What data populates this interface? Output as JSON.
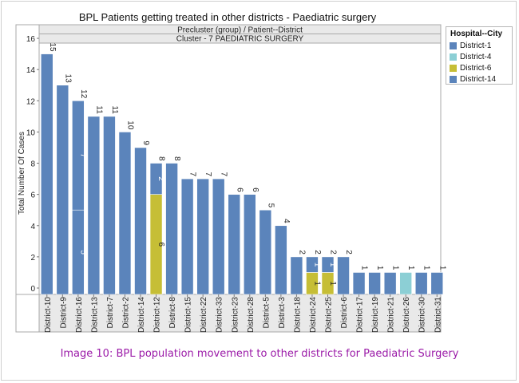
{
  "title": "BPL Patients getting treated in other districts - Paediatric surgery",
  "caption": "Image 10: BPL population movement to other districts for Paediatric Surgery",
  "legend": {
    "title": "Hospital--City",
    "items": [
      {
        "label": "District-1",
        "color": "#5b84bb"
      },
      {
        "label": "District-4",
        "color": "#8ccfd5"
      },
      {
        "label": "District-6",
        "color": "#c6be36"
      },
      {
        "label": "District-14",
        "color": "#5b84bb"
      }
    ]
  },
  "chart_data": {
    "type": "bar",
    "stacked": true,
    "title": "BPL Patients getting treated in other districts - Paediatric surgery",
    "header_line1": "Precluster (group)  /  Patient--District",
    "header_line2": "Cluster - 7 PAEDIATRIC SURGERY",
    "ylabel": "Total Number Of Cases",
    "ylim": [
      0,
      16
    ],
    "yticks": [
      0,
      2,
      4,
      6,
      8,
      10,
      12,
      14,
      16
    ],
    "grid": false,
    "legend_position": "right",
    "categories": [
      "District-10",
      "District-9",
      "District-16",
      "District-13",
      "District-7",
      "District-2",
      "District-14",
      "District-12",
      "District-8",
      "District-15",
      "District-22",
      "District-33",
      "District-23",
      "District-28",
      "District-5",
      "District-3",
      "District-18",
      "District-24",
      "District-25",
      "District-6",
      "District-17",
      "District-19",
      "District-21",
      "District-26",
      "District-30",
      "District-31"
    ],
    "totals": [
      15,
      13,
      12,
      11,
      11,
      10,
      9,
      8,
      8,
      7,
      7,
      7,
      6,
      6,
      5,
      4,
      2,
      2,
      2,
      2,
      1,
      1,
      1,
      1,
      1,
      1
    ],
    "segments": [
      [
        {
          "series": "District-14",
          "value": 15
        }
      ],
      [
        {
          "series": "District-14",
          "value": 13
        }
      ],
      [
        {
          "series": "District-1",
          "value": 5
        },
        {
          "series": "District-14",
          "value": 7
        }
      ],
      [
        {
          "series": "District-14",
          "value": 11
        }
      ],
      [
        {
          "series": "District-14",
          "value": 11
        }
      ],
      [
        {
          "series": "District-14",
          "value": 10
        }
      ],
      [
        {
          "series": "District-14",
          "value": 9
        }
      ],
      [
        {
          "series": "District-6",
          "value": 6
        },
        {
          "series": "District-14",
          "value": 2
        }
      ],
      [
        {
          "series": "District-14",
          "value": 8
        }
      ],
      [
        {
          "series": "District-14",
          "value": 7
        }
      ],
      [
        {
          "series": "District-14",
          "value": 7
        }
      ],
      [
        {
          "series": "District-14",
          "value": 7
        }
      ],
      [
        {
          "series": "District-14",
          "value": 6
        }
      ],
      [
        {
          "series": "District-14",
          "value": 6
        }
      ],
      [
        {
          "series": "District-14",
          "value": 5
        }
      ],
      [
        {
          "series": "District-14",
          "value": 4
        }
      ],
      [
        {
          "series": "District-14",
          "value": 2
        }
      ],
      [
        {
          "series": "District-6",
          "value": 1
        },
        {
          "series": "District-14",
          "value": 1
        }
      ],
      [
        {
          "series": "District-6",
          "value": 1
        },
        {
          "series": "District-14",
          "value": 1
        }
      ],
      [
        {
          "series": "District-14",
          "value": 2
        }
      ],
      [
        {
          "series": "District-14",
          "value": 1
        }
      ],
      [
        {
          "series": "District-14",
          "value": 1
        }
      ],
      [
        {
          "series": "District-14",
          "value": 1
        }
      ],
      [
        {
          "series": "District-4",
          "value": 1
        }
      ],
      [
        {
          "series": "District-14",
          "value": 1
        }
      ],
      [
        {
          "series": "District-14",
          "value": 1
        }
      ]
    ],
    "segment_labels": [
      {
        "category": "District-16",
        "series": "District-1",
        "text": "5"
      },
      {
        "category": "District-16",
        "series": "District-14",
        "text": "7"
      },
      {
        "category": "District-12",
        "series": "District-6",
        "text": "6"
      },
      {
        "category": "District-12",
        "series": "District-14",
        "text": "2"
      },
      {
        "category": "District-24",
        "series": "District-6",
        "text": "1"
      },
      {
        "category": "District-24",
        "series": "District-14",
        "text": "1"
      },
      {
        "category": "District-25",
        "series": "District-6",
        "text": "1"
      },
      {
        "category": "District-25",
        "series": "District-14",
        "text": "1"
      }
    ]
  }
}
